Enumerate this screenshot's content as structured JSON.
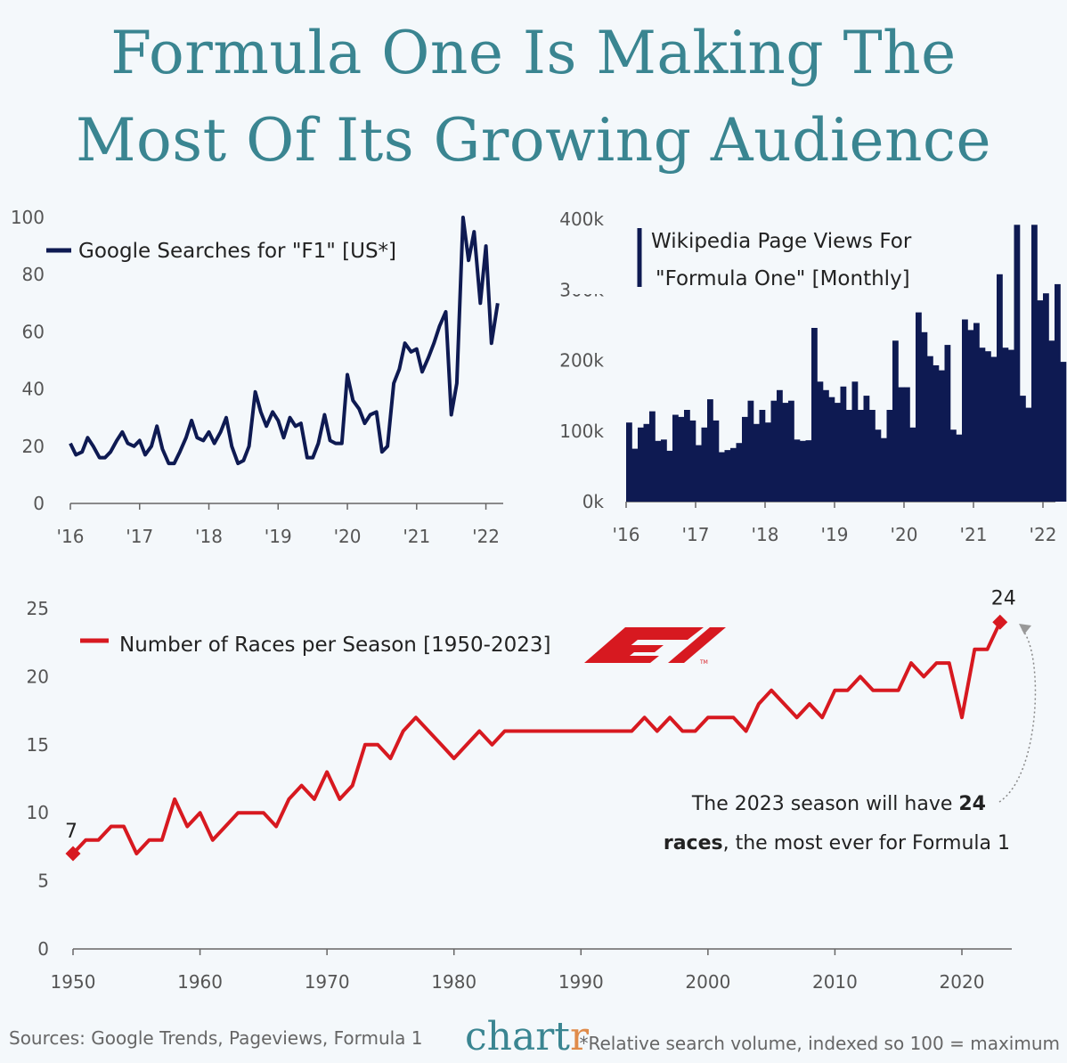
{
  "title_line1": "Formula One Is Making The",
  "title_line2": "Most Of Its Growing Audience",
  "colors": {
    "title": "#3a8591",
    "navy": "#0e1a52",
    "red": "#d71920",
    "axis": "#555555"
  },
  "chart_data": [
    {
      "type": "line",
      "legend": "Google Searches for \"F1\" [US*]",
      "x_tick_labels": [
        "'16",
        "'17",
        "'18",
        "'19",
        "'20",
        "'21",
        "'22"
      ],
      "x_tick_years": [
        2016,
        2017,
        2018,
        2019,
        2020,
        2021,
        2022
      ],
      "y_ticks": [
        0,
        20,
        40,
        60,
        80,
        100
      ],
      "ylim": [
        0,
        100
      ],
      "xlim": [
        2016,
        2022.25
      ],
      "series": [
        {
          "x": [
            2016.0,
            2016.08,
            2016.17,
            2016.25,
            2016.33,
            2016.42,
            2016.5,
            2016.58,
            2016.67,
            2016.75,
            2016.83,
            2016.92,
            2017.0,
            2017.08,
            2017.17,
            2017.25,
            2017.33,
            2017.42,
            2017.5,
            2017.58,
            2017.67,
            2017.75,
            2017.83,
            2017.92,
            2018.0,
            2018.08,
            2018.17,
            2018.25,
            2018.33,
            2018.42,
            2018.5,
            2018.58,
            2018.67,
            2018.75,
            2018.83,
            2018.92,
            2019.0,
            2019.08,
            2019.17,
            2019.25,
            2019.33,
            2019.42,
            2019.5,
            2019.58,
            2019.67,
            2019.75,
            2019.83,
            2019.92,
            2020.0,
            2020.08,
            2020.17,
            2020.25,
            2020.33,
            2020.42,
            2020.5,
            2020.58,
            2020.67,
            2020.75,
            2020.83,
            2020.92,
            2021.0,
            2021.08,
            2021.17,
            2021.25,
            2021.33,
            2021.42,
            2021.5,
            2021.58,
            2021.67,
            2021.75,
            2021.83,
            2021.92,
            2022.0,
            2022.08,
            2022.17
          ],
          "values": [
            21,
            17,
            18,
            23,
            20,
            16,
            16,
            18,
            22,
            25,
            21,
            20,
            22,
            17,
            20,
            27,
            19,
            14,
            14,
            18,
            23,
            29,
            23,
            22,
            25,
            21,
            25,
            30,
            20,
            14,
            15,
            20,
            39,
            32,
            27,
            32,
            29,
            23,
            30,
            27,
            28,
            16,
            16,
            21,
            31,
            22,
            21,
            21,
            45,
            36,
            33,
            28,
            31,
            32,
            18,
            20,
            42,
            47,
            56,
            53,
            54,
            46,
            51,
            56,
            62,
            67,
            31,
            42,
            100,
            85,
            95,
            70,
            90,
            56,
            70
          ]
        }
      ]
    },
    {
      "type": "bar",
      "legend_line1": "Wikipedia Page Views For",
      "legend_line2": "\"Formula One\" [Monthly]",
      "x_tick_labels": [
        "'16",
        "'17",
        "'18",
        "'19",
        "'20",
        "'21",
        "'22"
      ],
      "x_tick_years": [
        2016,
        2017,
        2018,
        2019,
        2020,
        2021,
        2022
      ],
      "y_tick_labels": [
        "0k",
        "100k",
        "200k",
        "300k",
        "400k"
      ],
      "y_ticks": [
        0,
        100000,
        200000,
        300000,
        400000
      ],
      "ylim": [
        0,
        400000
      ],
      "start_year": 2016,
      "values": [
        112000,
        75000,
        105000,
        110000,
        128000,
        86000,
        88000,
        72000,
        123000,
        120000,
        130000,
        115000,
        80000,
        105000,
        145000,
        115000,
        70000,
        73000,
        76000,
        83000,
        120000,
        143000,
        110000,
        130000,
        112000,
        143000,
        158000,
        140000,
        143000,
        88000,
        86000,
        87000,
        246000,
        170000,
        158000,
        148000,
        140000,
        163000,
        130000,
        170000,
        130000,
        150000,
        130000,
        102000,
        90000,
        130000,
        228000,
        162000,
        162000,
        105000,
        268000,
        240000,
        206000,
        193000,
        186000,
        222000,
        102000,
        95000,
        258000,
        243000,
        253000,
        218000,
        213000,
        205000,
        322000,
        218000,
        215000,
        392000,
        150000,
        133000,
        392000,
        285000,
        295000,
        228000,
        308000,
        198000
      ]
    },
    {
      "type": "line",
      "legend": "Number of Races per Season [1950-2023]",
      "x_ticks": [
        1950,
        1960,
        1970,
        1980,
        1990,
        2000,
        2010,
        2020
      ],
      "y_ticks": [
        0,
        5,
        10,
        15,
        20,
        25
      ],
      "ylim": [
        0,
        25
      ],
      "xlim": [
        1950,
        2023
      ],
      "start_label": "7",
      "end_label": "24",
      "annotation_line1_a": "The 2023 season will have ",
      "annotation_line1_b": "24",
      "annotation_line2_a": "races",
      "annotation_line2_b": ", the most ever for Formula 1",
      "series": [
        {
          "x_start": 1950,
          "values": [
            7,
            8,
            8,
            9,
            9,
            7,
            8,
            8,
            11,
            9,
            10,
            8,
            9,
            10,
            10,
            10,
            9,
            11,
            12,
            11,
            13,
            11,
            12,
            15,
            15,
            14,
            16,
            17,
            16,
            15,
            14,
            15,
            16,
            15,
            16,
            16,
            16,
            16,
            16,
            16,
            16,
            16,
            16,
            16,
            16,
            17,
            16,
            17,
            16,
            16,
            17,
            17,
            17,
            16,
            18,
            19,
            18,
            17,
            18,
            17,
            19,
            19,
            20,
            19,
            19,
            19,
            21,
            20,
            21,
            21,
            17,
            22,
            22,
            24
          ]
        }
      ]
    }
  ],
  "footer": {
    "sources": "Sources: Google Trends, Pageviews, Formula 1",
    "brand_main": "chart",
    "brand_accent": "r",
    "note": "*Relative search volume, indexed so 100 = maximum"
  }
}
